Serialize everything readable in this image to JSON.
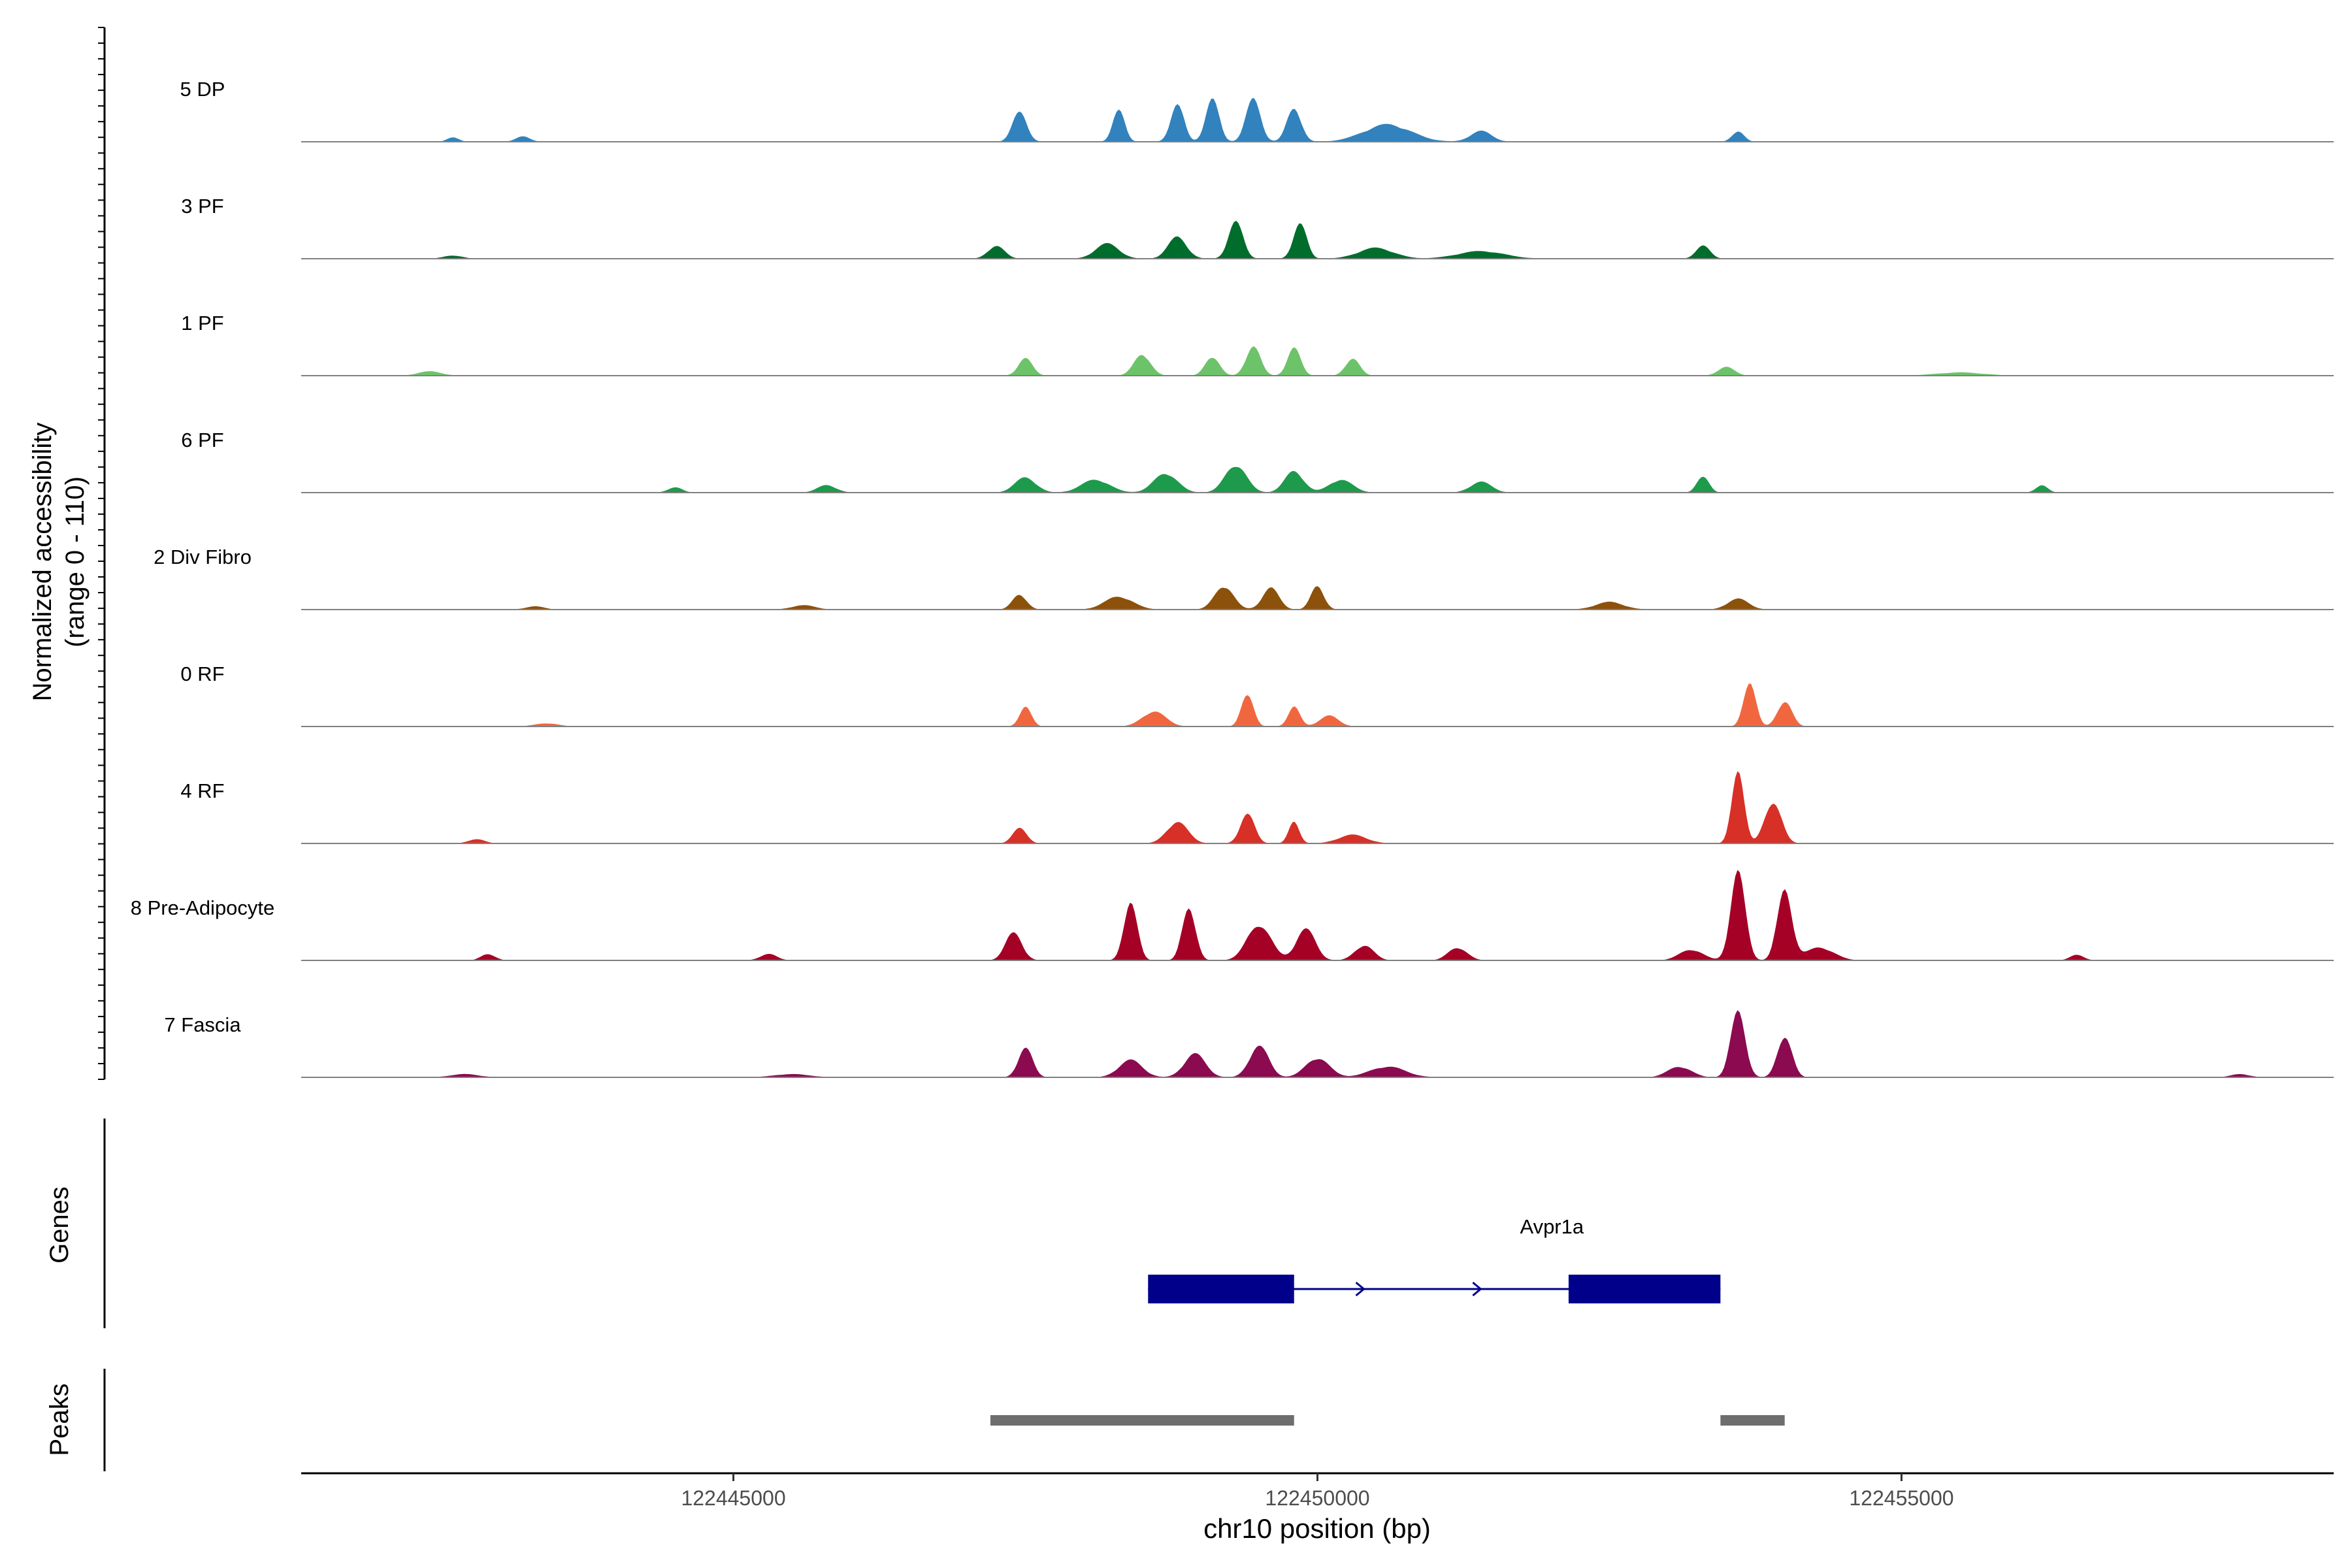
{
  "chart_data": {
    "type": "area",
    "title": "",
    "ylabel_line1": "Normalized accessibility",
    "ylabel_line2": "(range 0 - 110)",
    "xlabel": "chr10 position (bp)",
    "xlim": [
      122441300,
      122458700
    ],
    "ylim": [
      0,
      110
    ],
    "x_ticks": [
      "122445000",
      "122450000",
      "122455000"
    ],
    "genes_label": "Genes",
    "peaks_label": "Peaks",
    "tracks": [
      {
        "name": "5 DP",
        "color": "#3182bd",
        "peaks": [
          [
            122447450,
            28,
            60
          ],
          [
            122448300,
            30,
            50
          ],
          [
            122448800,
            36,
            55
          ],
          [
            122449100,
            42,
            55
          ],
          [
            122449450,
            42,
            60
          ],
          [
            122449800,
            32,
            60
          ],
          [
            122450600,
            16,
            200
          ],
          [
            122451400,
            10,
            90
          ],
          [
            122453600,
            10,
            50
          ],
          [
            122442600,
            4,
            50
          ],
          [
            122443200,
            5,
            60
          ]
        ]
      },
      {
        "name": "3 PF",
        "color": "#006d2c",
        "peaks": [
          [
            122447250,
            12,
            70
          ],
          [
            122448200,
            14,
            100
          ],
          [
            122448800,
            20,
            80
          ],
          [
            122449300,
            36,
            60
          ],
          [
            122449850,
            34,
            55
          ],
          [
            122450500,
            10,
            150
          ],
          [
            122451400,
            7,
            200
          ],
          [
            122453300,
            12,
            60
          ],
          [
            122442600,
            3,
            80
          ]
        ]
      },
      {
        "name": "1 PF",
        "color": "#6dc36a",
        "peaks": [
          [
            122447500,
            16,
            60
          ],
          [
            122448500,
            20,
            70
          ],
          [
            122449100,
            18,
            60
          ],
          [
            122449450,
            28,
            60
          ],
          [
            122449800,
            26,
            55
          ],
          [
            122450300,
            16,
            60
          ],
          [
            122453500,
            8,
            70
          ],
          [
            122442400,
            4,
            100
          ],
          [
            122455500,
            3,
            200
          ]
        ]
      },
      {
        "name": "6 PF",
        "color": "#1d9a4b",
        "peaks": [
          [
            122447500,
            14,
            90
          ],
          [
            122448100,
            12,
            120
          ],
          [
            122448700,
            18,
            100
          ],
          [
            122449300,
            26,
            90
          ],
          [
            122449800,
            20,
            80
          ],
          [
            122450200,
            12,
            100
          ],
          [
            122451400,
            10,
            90
          ],
          [
            122453300,
            16,
            50
          ],
          [
            122445800,
            7,
            80
          ],
          [
            122444500,
            5,
            60
          ],
          [
            122456200,
            7,
            50
          ]
        ]
      },
      {
        "name": "2 Div Fibro",
        "color": "#8c510a",
        "peaks": [
          [
            122447450,
            14,
            60
          ],
          [
            122448300,
            12,
            120
          ],
          [
            122449200,
            22,
            80
          ],
          [
            122449600,
            20,
            70
          ],
          [
            122450000,
            22,
            55
          ],
          [
            122452500,
            7,
            120
          ],
          [
            122453600,
            10,
            90
          ],
          [
            122445600,
            4,
            100
          ],
          [
            122443300,
            3,
            80
          ]
        ]
      },
      {
        "name": "0 RF",
        "color": "#f0673f",
        "peaks": [
          [
            122447500,
            18,
            50
          ],
          [
            122448600,
            14,
            100
          ],
          [
            122449400,
            32,
            50
          ],
          [
            122449800,
            18,
            50
          ],
          [
            122450100,
            10,
            80
          ],
          [
            122453700,
            44,
            50
          ],
          [
            122454000,
            24,
            60
          ],
          [
            122443400,
            3,
            100
          ]
        ]
      },
      {
        "name": "4 RF",
        "color": "#d73027",
        "peaks": [
          [
            122447450,
            14,
            60
          ],
          [
            122448800,
            20,
            90
          ],
          [
            122449400,
            28,
            60
          ],
          [
            122449800,
            20,
            45
          ],
          [
            122450300,
            8,
            120
          ],
          [
            122453600,
            74,
            50
          ],
          [
            122453900,
            40,
            70
          ],
          [
            122442800,
            4,
            70
          ]
        ]
      },
      {
        "name": "8 Pre-Adipocyte",
        "color": "#a50026",
        "peaks": [
          [
            122447400,
            26,
            70
          ],
          [
            122448400,
            58,
            55
          ],
          [
            122448900,
            52,
            55
          ],
          [
            122449500,
            34,
            100
          ],
          [
            122449900,
            30,
            80
          ],
          [
            122450400,
            14,
            80
          ],
          [
            122451200,
            12,
            80
          ],
          [
            122453200,
            10,
            100
          ],
          [
            122453600,
            90,
            60
          ],
          [
            122454000,
            70,
            60
          ],
          [
            122454300,
            12,
            120
          ],
          [
            122442900,
            6,
            60
          ],
          [
            122445300,
            6,
            70
          ],
          [
            122456500,
            5,
            60
          ]
        ]
      },
      {
        "name": "7 Fascia",
        "color": "#8b0a50",
        "peaks": [
          [
            122447500,
            28,
            60
          ],
          [
            122448400,
            16,
            100
          ],
          [
            122448950,
            22,
            90
          ],
          [
            122449500,
            30,
            80
          ],
          [
            122450000,
            18,
            100
          ],
          [
            122450600,
            10,
            150
          ],
          [
            122453100,
            10,
            100
          ],
          [
            122453600,
            66,
            60
          ],
          [
            122454000,
            40,
            60
          ],
          [
            122442700,
            3,
            120
          ],
          [
            122445500,
            3,
            150
          ],
          [
            122457900,
            3,
            80
          ]
        ]
      }
    ],
    "genes": [
      {
        "name": "Avpr1a",
        "strand": "+",
        "start": 122448550,
        "end": 122453450,
        "exons": [
          [
            122448550,
            122449800
          ],
          [
            122452150,
            122453450
          ]
        ]
      }
    ],
    "peak_regions": [
      [
        122447200,
        122449800
      ],
      [
        122453450,
        122454000
      ]
    ]
  }
}
